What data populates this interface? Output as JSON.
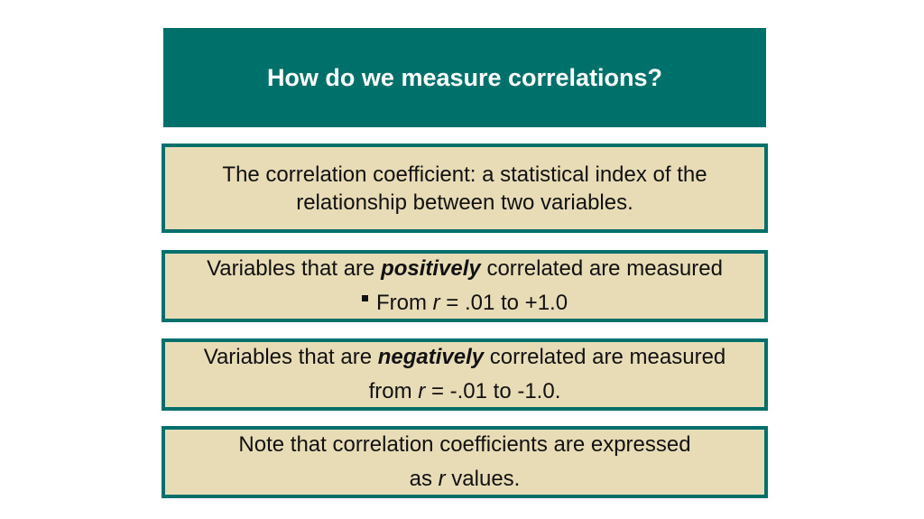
{
  "header": {
    "title": "How do we measure correlations?"
  },
  "boxes": [
    {
      "lines": [
        [
          "The correlation coefficient: a statistical index of the"
        ],
        [
          "relationship between two variables."
        ]
      ]
    },
    {
      "lines": [
        [
          "Variables that are ",
          "positively",
          " correlated are measured"
        ],
        [
          "From ",
          "r",
          " = .01 to +1.0"
        ]
      ]
    },
    {
      "lines": [
        [
          "Variables that are ",
          "negatively",
          " correlated are measured"
        ],
        [
          "from ",
          "r",
          " = -.01 to -1.0."
        ]
      ]
    },
    {
      "lines": [
        [
          "Note that correlation coefficients are expressed"
        ],
        [
          "as ",
          "r",
          " values."
        ]
      ]
    }
  ]
}
